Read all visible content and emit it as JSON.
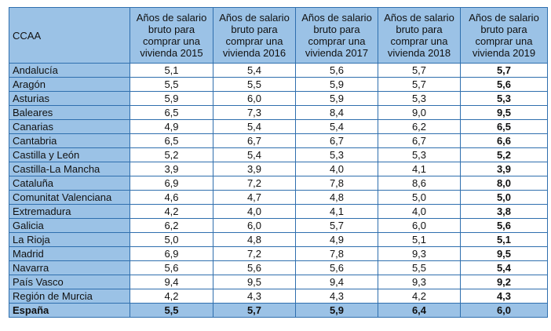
{
  "table": {
    "headers": [
      "CCAA",
      "Años de salario bruto para comprar una vivienda 2015",
      "Años de salario bruto para comprar una vivienda 2016",
      "Años de salario bruto para comprar una vivienda 2017",
      "Años de salario bruto para comprar una vivienda 2018",
      "Años de salario bruto para comprar una vivienda 2019"
    ],
    "rows": [
      [
        "Andalucía",
        "5,1",
        "5,4",
        "5,6",
        "5,7",
        "5,7"
      ],
      [
        "Aragón",
        "5,5",
        "5,5",
        "5,9",
        "5,7",
        "5,6"
      ],
      [
        "Asturias",
        "5,9",
        "6,0",
        "5,9",
        "5,3",
        "5,3"
      ],
      [
        "Baleares",
        "6,5",
        "7,3",
        "8,4",
        "9,0",
        "9,5"
      ],
      [
        "Canarias",
        "4,9",
        "5,4",
        "5,4",
        "6,2",
        "6,5"
      ],
      [
        "Cantabria",
        "6,5",
        "6,7",
        "6,7",
        "6,7",
        "6,6"
      ],
      [
        "Castilla y León",
        "5,2",
        "5,4",
        "5,3",
        "5,3",
        "5,2"
      ],
      [
        "Castilla-La Mancha",
        "3,9",
        "3,9",
        "4,0",
        "4,1",
        "3,9"
      ],
      [
        "Cataluña",
        "6,9",
        "7,2",
        "7,8",
        "8,6",
        "8,0"
      ],
      [
        "Comunitat Valenciana",
        "4,6",
        "4,7",
        "4,8",
        "5,0",
        "5,0"
      ],
      [
        "Extremadura",
        "4,2",
        "4,0",
        "4,1",
        "4,0",
        "3,8"
      ],
      [
        "Galicia",
        "6,2",
        "6,0",
        "5,7",
        "6,0",
        "5,6"
      ],
      [
        "La Rioja",
        "5,0",
        "4,8",
        "4,9",
        "5,1",
        "5,1"
      ],
      [
        "Madrid",
        "6,9",
        "7,2",
        "7,8",
        "9,3",
        "9,5"
      ],
      [
        "Navarra",
        "5,6",
        "5,6",
        "5,6",
        "5,5",
        "5,4"
      ],
      [
        "País Vasco",
        "9,4",
        "9,5",
        "9,4",
        "9,3",
        "9,2"
      ],
      [
        "Región de Murcia",
        "4,2",
        "4,3",
        "4,3",
        "4,2",
        "4,3"
      ]
    ],
    "total": [
      "España",
      "5,5",
      "5,7",
      "5,9",
      "6,4",
      "6,0"
    ]
  },
  "colors": {
    "header_bg": "#9bc2e6",
    "border": "#2f6fae",
    "cell_bg": "#ffffff"
  }
}
